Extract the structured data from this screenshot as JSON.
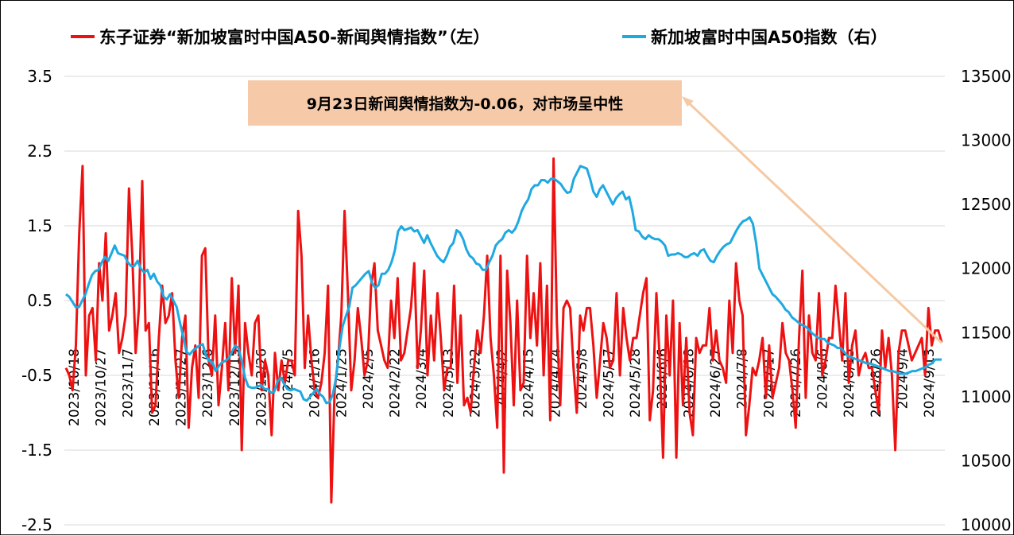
{
  "chart_data": {
    "type": "line",
    "legend": {
      "placement": "top",
      "entries": [
        {
          "name": "东子证券“新加坡富时中国A50-新闻舆情指数”（左）",
          "color": "#ee1111"
        },
        {
          "name": "新加坡富时中国A50指数（右）",
          "color": "#1ea9e1"
        }
      ]
    },
    "y_left": {
      "ticks": [
        "3.5",
        "2.5",
        "1.5",
        "0.5",
        "-0.5",
        "-1.5",
        "-2.5"
      ],
      "range": [
        -2.5,
        3.5
      ]
    },
    "y_right": {
      "ticks": [
        "13500",
        "13000",
        "12500",
        "12000",
        "11500",
        "11000",
        "10500",
        "10000"
      ],
      "range": [
        10000,
        13500
      ]
    },
    "x_ticks": [
      "2023/10/18",
      "2023/10/27",
      "2023/11/7",
      "2023/11/16",
      "2023/11/27",
      "2023/12/6",
      "2023/12/15",
      "2023/12/26",
      "2024/1/5",
      "2024/1/16",
      "2024/1/25",
      "2024/2/5",
      "2024/2/22",
      "2024/3/4",
      "2024/3/13",
      "2024/3/22",
      "2024/4/2",
      "2024/4/15",
      "2024/4/24",
      "2024/5/8",
      "2024/5/17",
      "2024/5/28",
      "2024/6/6",
      "2024/6/18",
      "2024/6/27",
      "2024/7/8",
      "2024/7/17",
      "2024/7/26",
      "2024/8/6",
      "2024/8/15",
      "2024/8/26",
      "2024/9/4",
      "2024/9/13"
    ],
    "grid": {
      "horizontal": true,
      "vertical": false
    },
    "annotation": {
      "text": "9月23日新闻舆情指数为-0.06，对市场呈中性",
      "bg": "#f6caa8"
    },
    "series": [
      {
        "name": "东子证券“新加坡富时中国A50-新闻舆情指数”（左）",
        "axis": "left",
        "color": "#ee1111",
        "values": [
          -0.4,
          -0.5,
          -0.7,
          -0.1,
          1.4,
          2.3,
          -0.5,
          0.3,
          0.4,
          -0.3,
          1.0,
          0.5,
          1.4,
          0.1,
          0.3,
          0.6,
          -0.2,
          0.0,
          0.3,
          2.0,
          1.1,
          -0.2,
          0.4,
          2.1,
          0.1,
          0.2,
          -1.0,
          -0.9,
          0.0,
          0.7,
          0.2,
          0.3,
          0.6,
          -0.3,
          -0.8,
          0.0,
          0.3,
          -1.2,
          -0.4,
          -0.1,
          -0.8,
          1.1,
          1.2,
          -0.3,
          -0.5,
          0.3,
          -0.9,
          -0.4,
          0.2,
          -0.7,
          0.8,
          -0.2,
          0.7,
          -1.5,
          0.2,
          -0.2,
          -0.5,
          0.2,
          0.3,
          -0.7,
          -0.3,
          -0.5,
          -1.3,
          -0.2,
          -0.7,
          -0.3,
          -0.6,
          -0.3,
          -0.3,
          -0.5,
          1.7,
          1.1,
          -0.4,
          0.3,
          -0.3,
          -0.7,
          -0.8,
          -0.6,
          -0.2,
          0.7,
          -2.2,
          -0.7,
          -0.3,
          0.3,
          1.7,
          0.6,
          -0.7,
          -0.3,
          0.4,
          0.0,
          -0.5,
          -0.3,
          0.7,
          1.0,
          0.1,
          -0.1,
          -0.3,
          -0.4,
          0.5,
          0.0,
          0.8,
          -0.3,
          -0.2,
          0.1,
          0.4,
          1.0,
          -0.4,
          0.1,
          0.9,
          -0.5,
          0.3,
          -0.3,
          0.6,
          0.0,
          -0.7,
          -0.4,
          -0.4,
          0.7,
          -0.6,
          0.3,
          -0.9,
          -0.8,
          -1.0,
          -0.4,
          0.1,
          -0.2,
          0.3,
          1.1,
          0.0,
          -0.5,
          -1.2,
          1.1,
          -1.8,
          0.9,
          0.2,
          -0.9,
          0.5,
          -0.7,
          -0.6,
          1.1,
          0.0,
          0.6,
          -0.1,
          1.0,
          -0.5,
          0.7,
          -1.1,
          2.4,
          0.2,
          -0.9,
          0.4,
          0.5,
          0.4,
          -0.4,
          -1.0,
          0.3,
          0.1,
          0.4,
          0.4,
          -0.1,
          -0.8,
          -0.3,
          0.2,
          0.0,
          -0.4,
          -0.3,
          0.6,
          -0.5,
          0.4,
          0.0,
          -0.3,
          0.0,
          0.0,
          0.3,
          0.6,
          0.8,
          -1.1,
          -0.7,
          0.6,
          -0.3,
          -1.6,
          0.3,
          -0.5,
          0.5,
          -1.6,
          0.2,
          -0.9,
          0.0,
          -1.0,
          -1.3,
          0.0,
          -0.2,
          -0.1,
          -0.1,
          0.4,
          -0.3,
          0.1,
          -0.3,
          -0.4,
          -0.6,
          0.5,
          -0.2,
          1.0,
          0.5,
          0.3,
          -1.3,
          -0.9,
          -0.4,
          -0.5,
          -0.3,
          0.0,
          -0.8,
          -0.1,
          -0.8,
          -0.6,
          -0.4,
          0.2,
          -0.2,
          -0.3,
          -0.7,
          -1.2,
          0.0,
          0.9,
          -0.8,
          0.3,
          -0.2,
          -0.3,
          0.6,
          -0.5,
          -0.3,
          0.0,
          0.0,
          0.7,
          0.2,
          -0.3,
          0.6,
          -0.6,
          -0.1,
          0.1,
          -0.5,
          -0.3,
          -0.2,
          -0.4,
          -0.4,
          -0.7,
          -1.0,
          0.1,
          -0.4,
          0.0,
          -0.5,
          -1.5,
          -0.2,
          0.1,
          0.1,
          -0.1,
          -0.3,
          -0.2,
          -0.1,
          0.0,
          -0.5,
          0.4,
          -0.1,
          0.1,
          0.1,
          -0.06
        ]
      },
      {
        "name": "新加坡富时中国A50指数（右）",
        "axis": "right",
        "color": "#1ea9e1",
        "values": [
          11800,
          11780,
          11740,
          11700,
          11700,
          11750,
          11800,
          11880,
          11950,
          11980,
          11990,
          12050,
          12090,
          12060,
          12120,
          12180,
          12120,
          12110,
          12100,
          12050,
          12020,
          12020,
          12060,
          12000,
          11970,
          11990,
          11920,
          11960,
          11900,
          11870,
          11780,
          11760,
          11800,
          11750,
          11700,
          11580,
          11470,
          11350,
          11330,
          11360,
          11380,
          11400,
          11410,
          11320,
          11280,
          11270,
          11200,
          11240,
          11270,
          11280,
          11300,
          11350,
          11400,
          11380,
          11280,
          11150,
          11080,
          11070,
          11070,
          11080,
          11090,
          11060,
          11060,
          11030,
          11040,
          11120,
          11150,
          11100,
          11060,
          11050,
          11060,
          11050,
          11040,
          10980,
          10970,
          11000,
          11030,
          11060,
          11020,
          11000,
          10950,
          10960,
          11020,
          11150,
          11380,
          11550,
          11630,
          11700,
          11850,
          11870,
          11900,
          11930,
          11960,
          11980,
          11890,
          11850,
          11870,
          11960,
          11960,
          11990,
          12050,
          12140,
          12290,
          12330,
          12300,
          12310,
          12320,
          12290,
          12300,
          12250,
          12200,
          12260,
          12200,
          12150,
          12100,
          12070,
          12050,
          12100,
          12170,
          12200,
          12300,
          12280,
          12230,
          12150,
          12100,
          12080,
          12040,
          12030,
          11990,
          11990,
          12050,
          12100,
          12180,
          12210,
          12230,
          12280,
          12300,
          12280,
          12310,
          12370,
          12450,
          12500,
          12540,
          12620,
          12650,
          12650,
          12690,
          12690,
          12670,
          12700,
          12700,
          12680,
          12660,
          12620,
          12590,
          12600,
          12700,
          12750,
          12800,
          12790,
          12780,
          12700,
          12600,
          12560,
          12620,
          12650,
          12600,
          12550,
          12500,
          12550,
          12580,
          12600,
          12540,
          12560,
          12450,
          12300,
          12290,
          12250,
          12230,
          12260,
          12240,
          12230,
          12230,
          12210,
          12180,
          12100,
          12110,
          12110,
          12120,
          12110,
          12090,
          12090,
          12110,
          12120,
          12100,
          12140,
          12150,
          12100,
          12060,
          12050,
          12100,
          12140,
          12170,
          12190,
          12200,
          12250,
          12300,
          12340,
          12370,
          12380,
          12400,
          12350,
          12200,
          12000,
          11950,
          11900,
          11850,
          11800,
          11780,
          11750,
          11720,
          11680,
          11660,
          11620,
          11600,
          11580,
          11560,
          11550,
          11530,
          11500,
          11480,
          11460,
          11450,
          11450,
          11420,
          11410,
          11400,
          11380,
          11380,
          11350,
          11320,
          11310,
          11300,
          11290,
          11280,
          11270,
          11260,
          11260,
          11250,
          11240,
          11230,
          11220,
          11210,
          11200,
          11200,
          11190,
          11180,
          11180,
          11180,
          11190,
          11200,
          11200,
          11210,
          11220,
          11230,
          11250,
          11260,
          11290,
          11290,
          11290
        ]
      }
    ]
  }
}
